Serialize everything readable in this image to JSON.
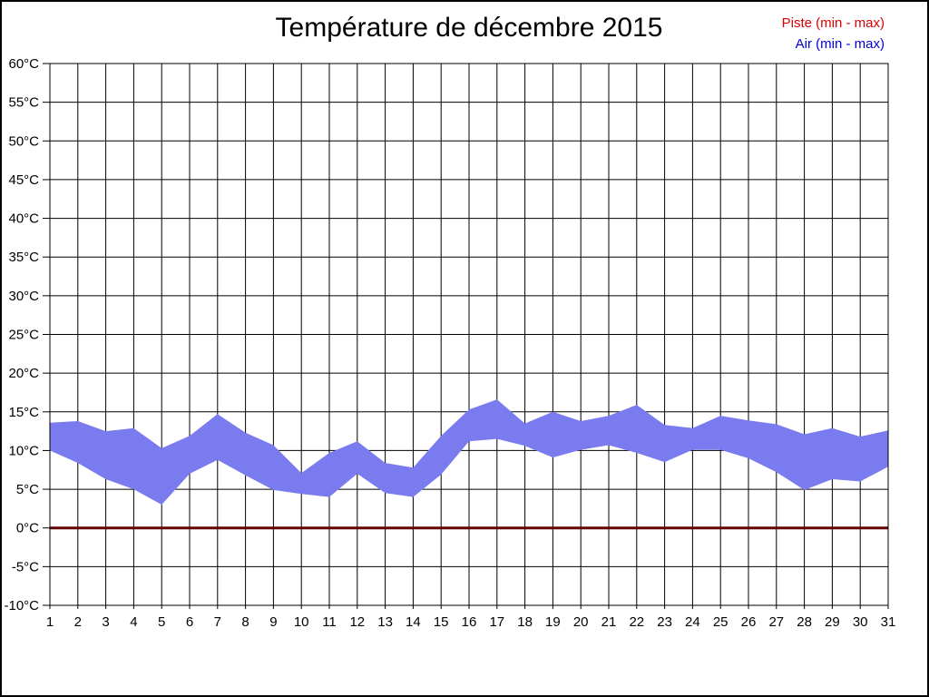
{
  "page": {
    "background": "#ffffff",
    "border_color": "#000000"
  },
  "header": {
    "title": "Température de décembre 2015"
  },
  "legend": [
    {
      "label": "Piste (min - max)",
      "color": "#dd0000"
    },
    {
      "label": "Air (min - max)",
      "color": "#0000dd"
    }
  ],
  "chart_data": {
    "type": "area",
    "title": "Température de décembre 2015",
    "xlabel": "",
    "ylabel": "",
    "x": [
      1,
      2,
      3,
      4,
      5,
      6,
      7,
      8,
      9,
      10,
      11,
      12,
      13,
      14,
      15,
      16,
      17,
      18,
      19,
      20,
      21,
      22,
      23,
      24,
      25,
      26,
      27,
      28,
      29,
      30,
      31
    ],
    "y_ticks": [
      60,
      55,
      50,
      45,
      40,
      35,
      30,
      25,
      20,
      15,
      10,
      5,
      0,
      -5,
      -10
    ],
    "y_tick_suffix": "°C",
    "ylim": [
      -10,
      60
    ],
    "grid": true,
    "grid_color": "#000000",
    "legend_position": "top-right",
    "series": [
      {
        "name": "Air (min - max)",
        "type": "band",
        "fill_color": "#7b7bf0",
        "max": [
          13.6,
          13.8,
          12.5,
          12.9,
          10.3,
          11.9,
          14.7,
          12.3,
          10.7,
          7.1,
          9.7,
          11.2,
          8.4,
          7.8,
          11.9,
          15.3,
          16.6,
          13.5,
          15.0,
          13.8,
          14.5,
          15.9,
          13.3,
          12.9,
          14.5,
          13.9,
          13.4,
          12.1,
          12.9,
          11.8,
          12.6
        ],
        "min": [
          10.0,
          8.4,
          6.3,
          5.0,
          3.0,
          7.0,
          8.8,
          6.8,
          4.9,
          4.4,
          4.0,
          7.0,
          4.5,
          4.0,
          6.9,
          11.2,
          11.5,
          10.6,
          9.1,
          10.1,
          10.7,
          9.7,
          8.5,
          10.1,
          10.1,
          9.0,
          7.2,
          4.9,
          6.3,
          6.0,
          7.9
        ]
      },
      {
        "name": "Piste (min - max)",
        "type": "line",
        "line_color": "#660000",
        "constant_value": 0
      }
    ]
  }
}
